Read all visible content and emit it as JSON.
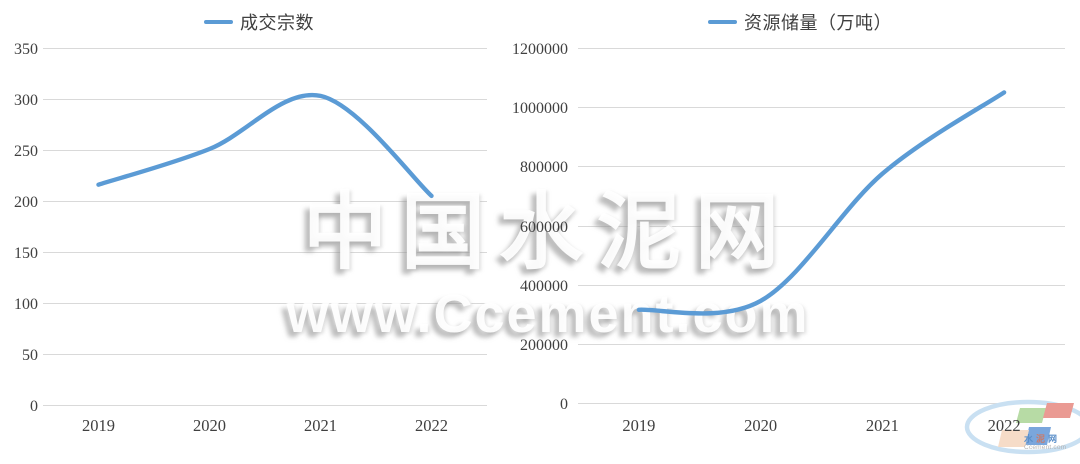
{
  "page": {
    "background": "#ffffff"
  },
  "colors": {
    "line_blue": "#5B9BD5",
    "gridline": "#D9D9D9",
    "axis_text": "#404040",
    "watermark_shadow": "#919191"
  },
  "watermark": {
    "line1": "中国水泥网",
    "line2": "www.Ccement.com"
  },
  "logo": {
    "name_chars": [
      "水",
      "泥",
      "网"
    ],
    "name_colors": [
      "#5b8fc9",
      "#c97b6a",
      "#5b8fc9"
    ],
    "url": "Ccement.com",
    "square_colors": [
      "#b7dba5",
      "#ea9a93",
      "#7aa6dc",
      "#f6dcc8"
    ],
    "swoosh_color": "#c9e0f2"
  },
  "chart_data": [
    {
      "type": "line",
      "legend": "成交宗数",
      "categories": [
        "2019",
        "2020",
        "2021",
        "2022"
      ],
      "values": [
        216,
        251,
        303,
        205
      ],
      "title": "",
      "xlabel": "",
      "ylabel": "",
      "ylim": [
        0,
        350
      ],
      "ytick_step": 50,
      "grid": true,
      "legend_position": "top",
      "line_color": "#5B9BD5",
      "smoothed": true
    },
    {
      "type": "line",
      "legend": "资源储量（万吨）",
      "categories": [
        "2019",
        "2020",
        "2021",
        "2022"
      ],
      "values": [
        315000,
        345000,
        775000,
        1050000
      ],
      "title": "",
      "xlabel": "",
      "ylabel": "",
      "ylim": [
        0,
        1200000
      ],
      "ytick_step": 200000,
      "grid": true,
      "legend_position": "top",
      "line_color": "#5B9BD5",
      "smoothed": true
    }
  ]
}
